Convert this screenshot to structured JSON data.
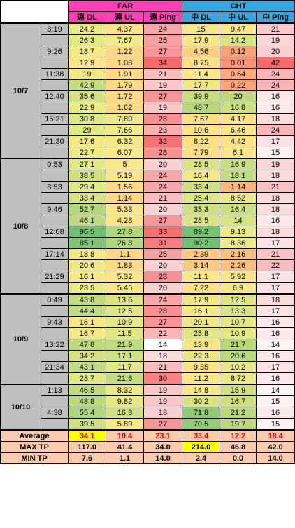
{
  "header": {
    "far": "FAR",
    "cht": "CHT",
    "far_dl": "遠 DL",
    "far_ul": "遠 UL",
    "far_ping": "遠 Ping",
    "cht_dl": "中 DL",
    "cht_ul": "中 UL",
    "cht_ping": "中 Ping"
  },
  "groups": [
    {
      "date": "10/7",
      "rows": [
        {
          "time": "8:19",
          "v": [
            "24.2",
            "4.37",
            "24",
            "15",
            "9.47",
            "21"
          ],
          "c": [
            "#eaeb84",
            "#fde383",
            "#f8a6a8",
            "#f5e886",
            "#f7e985",
            "#f9c9cb"
          ]
        },
        {
          "time": "",
          "v": [
            "26.3",
            "7.67",
            "25",
            "17.9",
            "14.2",
            "19"
          ],
          "c": [
            "#e5ea83",
            "#eeea84",
            "#f8a0a2",
            "#f1e784",
            "#d7e480",
            "#fad5d7"
          ]
        },
        {
          "time": "9:26",
          "v": [
            "18.7",
            "1.22",
            "27",
            "4.56",
            "0.12",
            "20"
          ],
          "c": [
            "#f2e884",
            "#fdd781",
            "#f89598",
            "#fdd07f",
            "#fca375",
            "#facfd1"
          ]
        },
        {
          "time": "",
          "v": [
            "12.9",
            "1.08",
            "34",
            "8.75",
            "0.01",
            "42"
          ],
          "c": [
            "#fbe784",
            "#fdd781",
            "#f8696b",
            "#fee081",
            "#fa9473",
            "#f8696b"
          ]
        },
        {
          "time": "11:38",
          "v": [
            "19",
            "1.91",
            "21",
            "11.4",
            "0.64",
            "24"
          ],
          "c": [
            "#f2e884",
            "#fdd982",
            "#f9bbbd",
            "#fbe784",
            "#fcaa77",
            "#f9b6b8"
          ]
        },
        {
          "time": "",
          "v": [
            "42.9",
            "1.79",
            "19",
            "17.7",
            "0.22",
            "24"
          ],
          "c": [
            "#c6dd7e",
            "#fdd982",
            "#fac7c9",
            "#f1e784",
            "#fca475",
            "#f9b6b8"
          ]
        },
        {
          "time": "12:40",
          "v": [
            "35.6",
            "1.72",
            "27",
            "39.9",
            "20",
            "16"
          ],
          "c": [
            "#d6e280",
            "#fdd982",
            "#f89598",
            "#c7dd7e",
            "#bcda7c",
            "#fce9ea"
          ]
        },
        {
          "time": "",
          "v": [
            "22.9",
            "1.62",
            "19",
            "48.7",
            "16.8",
            "16"
          ],
          "c": [
            "#ebeb84",
            "#fdd982",
            "#fac7c9",
            "#b6d87b",
            "#cadf7f",
            "#fce9ea"
          ]
        },
        {
          "time": "15:21",
          "v": [
            "30.8",
            "7.89",
            "28",
            "7.67",
            "4.17",
            "18"
          ],
          "c": [
            "#ddea82",
            "#ede984",
            "#f88f92",
            "#fee081",
            "#fde183",
            "#fbdcdd"
          ]
        },
        {
          "time": "",
          "v": [
            "29",
            "7.66",
            "23",
            "10.6",
            "6.46",
            "24"
          ],
          "c": [
            "#e1ea83",
            "#eeea84",
            "#f9afb1",
            "#fde383",
            "#f9e785",
            "#f9b6b8"
          ]
        },
        {
          "time": "21:30",
          "v": [
            "17.6",
            "6.32",
            "32",
            "8.22",
            "4.42",
            "17"
          ],
          "c": [
            "#f4e884",
            "#f5e986",
            "#f87577",
            "#fee081",
            "#fde383",
            "#fbe2e4"
          ]
        },
        {
          "time": "",
          "v": [
            "22.7",
            "6.07",
            "28",
            "7.79",
            "6.1",
            "15"
          ],
          "c": [
            "#ebeb84",
            "#f6e986",
            "#f88f92",
            "#fee081",
            "#f9e785",
            "#fcf0f0"
          ]
        }
      ]
    },
    {
      "date": "10/8",
      "rows": [
        {
          "time": "0:53",
          "v": [
            "27.1",
            "5",
            "20",
            "28.5",
            "16.9",
            "19"
          ],
          "c": [
            "#e3ea83",
            "#fbe784",
            "#facfd1",
            "#dae481",
            "#c9df7f",
            "#fad5d7"
          ]
        },
        {
          "time": "",
          "v": [
            "38.5",
            "5.19",
            "24",
            "16.4",
            "18.1",
            "18"
          ],
          "c": [
            "#cfe07f",
            "#fae684",
            "#f9a6a8",
            "#f4e885",
            "#c3dc7e",
            "#fbdcdd"
          ]
        },
        {
          "time": "8:53",
          "v": [
            "29.4",
            "1.56",
            "24",
            "33.4",
            "1.14",
            "21"
          ],
          "c": [
            "#e0ea83",
            "#fdd982",
            "#f9a6a8",
            "#d2e180",
            "#fcb67a",
            "#f9c2c4"
          ]
        },
        {
          "time": "",
          "v": [
            "33.4",
            "1.14",
            "21",
            "25.4",
            "8.52",
            "18"
          ],
          "c": [
            "#d9e381",
            "#fdd781",
            "#f9bbbd",
            "#e0e682",
            "#ecea84",
            "#fbdcdd"
          ]
        },
        {
          "time": "9:46",
          "v": [
            "52.7",
            "5.33",
            "20",
            "35.3",
            "16.4",
            "18"
          ],
          "c": [
            "#b3d77b",
            "#fae684",
            "#facfd1",
            "#cfe07f",
            "#ccdf7f",
            "#fbdcdd"
          ]
        },
        {
          "time": "",
          "v": [
            "46.1",
            "4.28",
            "27",
            "28.5",
            "14",
            "16"
          ],
          "c": [
            "#c0db7d",
            "#fde383",
            "#f89598",
            "#dae481",
            "#d8e480",
            "#fce9ea"
          ]
        },
        {
          "time": "12:08",
          "v": [
            "96.5",
            "27.8",
            "33",
            "89.2",
            "9.13",
            "18"
          ],
          "c": [
            "#6ec16d",
            "#b0d67b",
            "#f86f71",
            "#72c26e",
            "#e9ea84",
            "#fbdcdd"
          ]
        },
        {
          "time": "",
          "v": [
            "85.1",
            "26.8",
            "31",
            "90.2",
            "8.36",
            "17"
          ],
          "c": [
            "#80c670",
            "#b4d77b",
            "#f87c7e",
            "#6fc16d",
            "#edea84",
            "#fbe2e4"
          ]
        },
        {
          "time": "17:14",
          "v": [
            "18.8",
            "1.1",
            "25",
            "2.39",
            "2.16",
            "21"
          ],
          "c": [
            "#f2e884",
            "#fdd781",
            "#f8a0a2",
            "#fdc77d",
            "#fdc07b",
            "#f9c2c4"
          ]
        },
        {
          "time": "",
          "v": [
            "20.6",
            "1.83",
            "20",
            "3.14",
            "2.26",
            "22"
          ],
          "c": [
            "#efe984",
            "#fdd982",
            "#facfd1",
            "#fdca7e",
            "#fdc07b",
            "#f9bcbe"
          ]
        },
        {
          "time": "21:29",
          "v": [
            "16.1",
            "5.32",
            "28",
            "11.1",
            "5.92",
            "17"
          ],
          "c": [
            "#f6e884",
            "#fae684",
            "#f88f92",
            "#fbe784",
            "#fae685",
            "#fbe2e4"
          ]
        },
        {
          "time": "",
          "v": [
            "23.5",
            "5.45",
            "20",
            "7.22",
            "6.9",
            "17"
          ],
          "c": [
            "#eaeb84",
            "#f9e685",
            "#facfd1",
            "#fedf81",
            "#f6e885",
            "#fbe2e4"
          ]
        }
      ]
    },
    {
      "date": "10/9",
      "rows": [
        {
          "time": "0:49",
          "v": [
            "43.8",
            "13.6",
            "24",
            "17.9",
            "12.5",
            "18"
          ],
          "c": [
            "#c4dc7e",
            "#dbe481",
            "#f9a6a8",
            "#f1e784",
            "#dee582",
            "#fbdcdd"
          ]
        },
        {
          "time": "",
          "v": [
            "44.4",
            "12.5",
            "28",
            "16.1",
            "13.3",
            "17"
          ],
          "c": [
            "#c3dc7e",
            "#dfe582",
            "#f88f92",
            "#f4e885",
            "#dbe481",
            "#fbe2e4"
          ]
        },
        {
          "time": "9:43",
          "v": [
            "16.1",
            "10.9",
            "27",
            "20.1",
            "10.7",
            "16"
          ],
          "c": [
            "#f6e884",
            "#e5e783",
            "#f89598",
            "#eee784",
            "#e5e783",
            "#fce9ea"
          ]
        },
        {
          "time": "",
          "v": [
            "16.7",
            "11.5",
            "22",
            "25.8",
            "10.9",
            "16"
          ],
          "c": [
            "#f5e884",
            "#e3e682",
            "#f9b5b7",
            "#dfe682",
            "#e5e783",
            "#fce9ea"
          ]
        },
        {
          "time": "13:22",
          "v": [
            "47.8",
            "21.9",
            "14",
            "13.9",
            "21.7",
            "14"
          ],
          "c": [
            "#bddb7d",
            "#c3dc7e",
            "#ffffff",
            "#f8e685",
            "#b6d87b",
            "#fcf6f6"
          ]
        },
        {
          "time": "",
          "v": [
            "34.2",
            "17.1",
            "18",
            "22.3",
            "20.6",
            "16"
          ],
          "c": [
            "#d8e380",
            "#cfe07f",
            "#fbdcdd",
            "#e8e883",
            "#bad97c",
            "#fce9ea"
          ]
        },
        {
          "time": "21:34",
          "v": [
            "43.1",
            "11.7",
            "21",
            "9.35",
            "10.2",
            "17"
          ],
          "c": [
            "#c5dc7e",
            "#e2e682",
            "#f9bbbd",
            "#fde383",
            "#e7e883",
            "#fbe2e4"
          ]
        },
        {
          "time": "",
          "v": [
            "28.7",
            "21.6",
            "30",
            "11.2",
            "8.72",
            "16"
          ],
          "c": [
            "#e1ea83",
            "#c4dc7e",
            "#f88285",
            "#fbe784",
            "#ebea84",
            "#fce9ea"
          ]
        }
      ]
    },
    {
      "date": "10/10",
      "rows": [
        {
          "time": "1:13",
          "v": [
            "46.5",
            "8.32",
            "19",
            "14.8",
            "15.9",
            "14"
          ],
          "c": [
            "#bfdb7d",
            "#ecea84",
            "#fac7c9",
            "#f6e886",
            "#d0e07f",
            "#fcf6f6"
          ]
        },
        {
          "time": "",
          "v": [
            "48.8",
            "9.82",
            "19",
            "30.2",
            "16.7",
            "15"
          ],
          "c": [
            "#bbda7c",
            "#e8e983",
            "#fac7c9",
            "#d7e380",
            "#cde07f",
            "#fcf0f0"
          ]
        },
        {
          "time": "4:38",
          "v": [
            "55.4",
            "16.3",
            "18",
            "71.8",
            "21.2",
            "16"
          ],
          "c": [
            "#aed67a",
            "#d1e17f",
            "#fbcfd1",
            "#8fcb73",
            "#b9d97c",
            "#fce9ea"
          ]
        },
        {
          "time": "",
          "v": [
            "39.5",
            "5.89",
            "27",
            "70.5",
            "19.7",
            "15"
          ],
          "c": [
            "#cfe07f",
            "#f7e885",
            "#f89598",
            "#92cc74",
            "#bed97c",
            "#fcf0f0"
          ]
        }
      ]
    }
  ],
  "summary": [
    {
      "label": "Average",
      "v": [
        "34.1",
        "10.4",
        "23.1",
        "33.4",
        "12.2",
        "18.4"
      ],
      "style": "avg"
    },
    {
      "label": "MAX TP",
      "v": [
        "117.0",
        "41.4",
        "34.0",
        "214.0",
        "46.8",
        "42.0"
      ],
      "style": "max"
    },
    {
      "label": "MIN TP",
      "v": [
        "7.6",
        "1.1",
        "14.0",
        "2.4",
        "0.0",
        "14.0"
      ],
      "style": "min"
    }
  ]
}
